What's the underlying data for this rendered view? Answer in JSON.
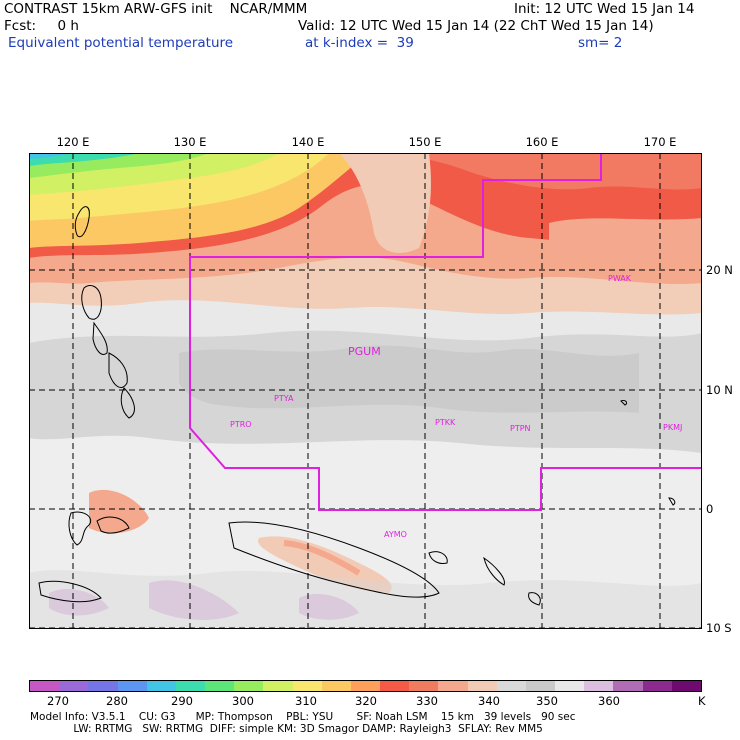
{
  "header": {
    "line1_left": "CONTRAST 15km ARW-GFS init    NCAR/MMM",
    "line1_right": "Init: 12 UTC Wed 15 Jan 14",
    "line2_left": "Fcst:     0 h",
    "line2_right": "Valid: 12 UTC Wed 15 Jan 14 (22 ChT Wed 15 Jan 14)",
    "line3_field": "Equivalent potential temperature",
    "line3_level": "at k-index =  39",
    "line3_sm": "sm= 2"
  },
  "axes": {
    "lon_labels": [
      "120 E",
      "130 E",
      "140 E",
      "150 E",
      "160 E",
      "170 E"
    ],
    "lat_labels": [
      "20 N",
      "10 N",
      "0",
      "10 S"
    ]
  },
  "stations": [
    "PWAK",
    "PGUM",
    "PTYA",
    "PTRO",
    "PTKK",
    "PTPN",
    "PKMJ",
    "AYMO"
  ],
  "colorbar": {
    "colors": [
      "#c558c5",
      "#9a6ad8",
      "#7575e6",
      "#5c96f0",
      "#41c4e6",
      "#3cdcae",
      "#5ce67a",
      "#96ec5e",
      "#d2f064",
      "#f8e66e",
      "#fcc864",
      "#fca05c",
      "#f45a46",
      "#f07c60",
      "#f4a88e",
      "#f2cbb6",
      "#d9d9d9",
      "#c9c9c9",
      "#e8e8e8",
      "#dcbfe0",
      "#b06cb4",
      "#8c2a90",
      "#6e0a70"
    ],
    "labels": [
      "270",
      "280",
      "290",
      "300",
      "310",
      "320",
      "330",
      "340",
      "350",
      "360"
    ],
    "unit": "K"
  },
  "footer": {
    "line1": "Model Info: V3.5.1    CU: G3      MP: Thompson    PBL: YSU       SF: Noah LSM    15 km   39 levels   90 sec",
    "line2": "             LW: RRTMG   SW: RRTMG  DIFF: simple KM: 3D Smagor DAMP: Rayleigh3  SFLAY: Rev MM5"
  }
}
